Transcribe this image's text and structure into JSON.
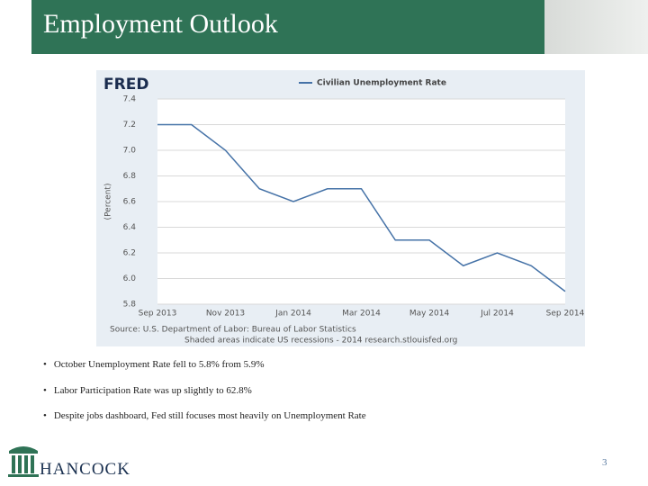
{
  "header": {
    "title": "Employment Outlook"
  },
  "chart_data": {
    "type": "line",
    "logo": "FRED",
    "categories": [
      "Sep 2013",
      null,
      "Nov 2013",
      null,
      "Jan 2014",
      null,
      "Mar 2014",
      null,
      "May 2014",
      null,
      "Jul 2014",
      null,
      "Sep 2014"
    ],
    "series": [
      {
        "name": "Civilian Unemployment Rate",
        "color": "#4572a7",
        "values": [
          7.2,
          7.2,
          7.0,
          6.7,
          6.6,
          6.7,
          6.7,
          6.3,
          6.3,
          6.1,
          6.2,
          6.1,
          5.9
        ]
      }
    ],
    "y_label": "(Percent)",
    "ylim": [
      5.8,
      7.4
    ],
    "yticks": [
      5.8,
      {
        "value": 6,
        "label": "6.0"
      },
      6.2,
      6.4,
      6.6,
      6.8,
      {
        "value": 7,
        "label": "7.0"
      },
      7.2,
      7.4
    ],
    "grid": true,
    "source": [
      "Source: U.S. Department of Labor: Bureau of Labor Statistics",
      "Shaded areas indicate US recessions - 2014 research.stlouisfed.org"
    ]
  },
  "bullets": [
    "October Unemployment Rate fell to 5.8% from 5.9%",
    "Labor Participation Rate was up slightly to 62.8%",
    "Despite jobs dashboard, Fed still focuses most heavily on Unemployment Rate"
  ],
  "footer": {
    "company": "HANCOCK",
    "page": "3"
  }
}
